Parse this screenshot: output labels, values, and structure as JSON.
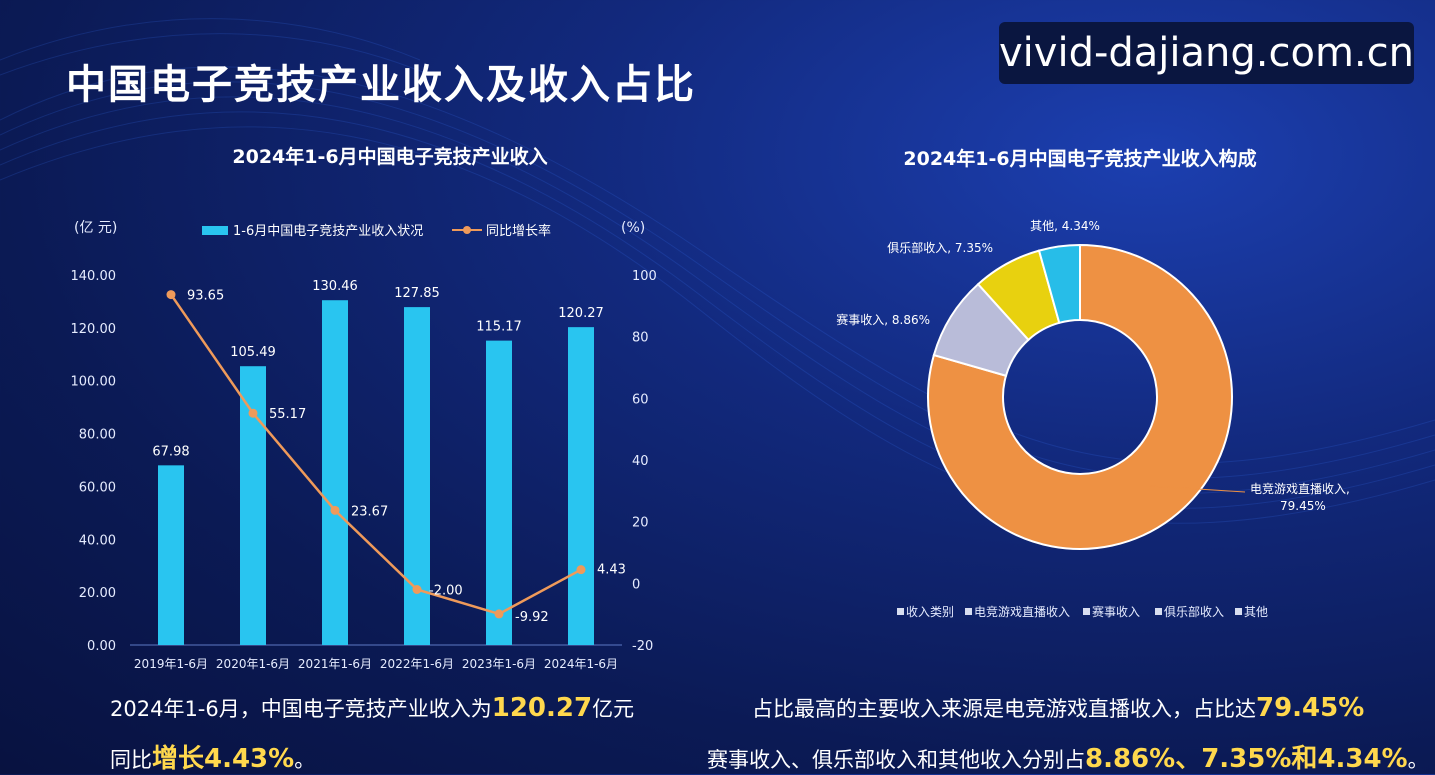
{
  "page": {
    "title": "中国电子竞技产业收入及收入占比",
    "watermark": "vivid-dajiang.com.cn"
  },
  "colors": {
    "bar": "#29c5f0",
    "line": "#ef9a5a",
    "pie": [
      "#ee9143",
      "#b9bcd9",
      "#e8d10f",
      "#27bde8"
    ]
  },
  "chart_data": [
    {
      "type": "bar",
      "title": "2024年1-6月中国电子竞技产业收入",
      "categories": [
        "2019年1-6月",
        "2020年1-6月",
        "2021年1-6月",
        "2022年1-6月",
        "2023年1-6月",
        "2024年1-6月"
      ],
      "ylabel": "(亿 元)",
      "ylabel_right": "(%)",
      "ylim": [
        0,
        140
      ],
      "ylim_right": [
        -20,
        100
      ],
      "y_ticks": [
        "0.00",
        "20.00",
        "40.00",
        "60.00",
        "80.00",
        "100.00",
        "120.00",
        "140.00"
      ],
      "y_ticks_right": [
        "-20",
        "0",
        "20",
        "40",
        "60",
        "80",
        "100"
      ],
      "grid": false,
      "legend_position": "top",
      "series": [
        {
          "name": "1-6月中国电子竞技产业收入状况",
          "type": "bar",
          "axis": "left",
          "values": [
            67.98,
            105.49,
            130.46,
            127.85,
            115.17,
            120.27
          ],
          "labels": [
            "67.98",
            "105.49",
            "130.46",
            "127.85",
            "115.17",
            "120.27"
          ]
        },
        {
          "name": "同比增长率",
          "type": "line",
          "axis": "right",
          "values": [
            93.65,
            55.17,
            23.67,
            -2.0,
            -9.92,
            4.43
          ],
          "labels": [
            "93.65",
            "55.17",
            "23.67",
            "-2.00",
            "-9.92",
            "4.43"
          ]
        }
      ]
    },
    {
      "type": "pie",
      "title": "2024年1-6月中国电子竞技产业收入构成",
      "donut": true,
      "slices": [
        {
          "name": "电竞游戏直播收入",
          "value": 79.45,
          "label": "电竞游戏直播收入,\n79.45%"
        },
        {
          "name": "赛事收入",
          "value": 8.86,
          "label": "赛事收入, 8.86%"
        },
        {
          "name": "俱乐部收入",
          "value": 7.35,
          "label": "俱乐部收入, 7.35%"
        },
        {
          "name": "其他",
          "value": 4.34,
          "label": "其他, 4.34%"
        }
      ],
      "legend": [
        "收入类别",
        "电竞游戏直播收入",
        "赛事收入",
        "俱乐部收入",
        "其他"
      ],
      "legend_position": "bottom"
    }
  ],
  "summary": {
    "left_line1_pre": "2024年1-6月，中国电子竞技产业收入为",
    "left_line1_value": "120.27",
    "left_line1_post": "亿元",
    "left_line2_pre": "同比",
    "left_line2_value": "增长4.43%",
    "left_line2_post": "。",
    "right_line1_pre": "占比最高的主要收入来源是电竞游戏直播收入，占比达",
    "right_line1_value": "79.45%",
    "right_line2_pre": "赛事收入、俱乐部收入和其他收入分别占",
    "right_line2_value": "8.86%、7.35%和4.34%",
    "right_line2_post": "。"
  }
}
